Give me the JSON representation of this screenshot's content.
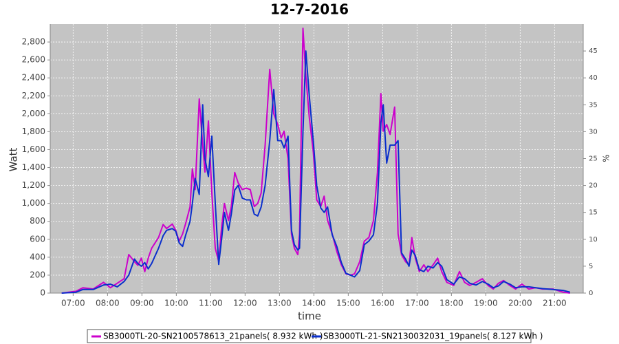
{
  "chart_data": {
    "type": "line",
    "title": "12-7-2016",
    "x_label": "time",
    "y_label": "Watt",
    "y2_label": "%",
    "grid": true,
    "legend": "bottom",
    "xlim": [
      "06:20",
      "21:50"
    ],
    "xticks": [
      "07:00",
      "08:00",
      "09:00",
      "10:00",
      "11:00",
      "12:00",
      "13:00",
      "14:00",
      "15:00",
      "16:00",
      "17:00",
      "18:00",
      "19:00",
      "20:00",
      "21:00"
    ],
    "ylim": [
      0,
      3000
    ],
    "yticks": [
      0,
      200,
      400,
      600,
      800,
      {
        "value": 1000,
        "label": "1,000"
      },
      {
        "value": 1200,
        "label": "1,200"
      },
      {
        "value": 1400,
        "label": "1,400"
      },
      {
        "value": 1600,
        "label": "1,600"
      },
      {
        "value": 1800,
        "label": "1,800"
      },
      {
        "value": 2000,
        "label": "2,000"
      },
      {
        "value": 2200,
        "label": "2,200"
      },
      {
        "value": 2400,
        "label": "2,400"
      },
      {
        "value": 2600,
        "label": "2,600"
      },
      {
        "value": 2800,
        "label": "2,800"
      }
    ],
    "y2lim": [
      0,
      50
    ],
    "y2ticks": [
      0,
      5,
      10,
      15,
      20,
      25,
      30,
      35,
      40,
      45
    ],
    "x": [
      "06:40",
      "07:05",
      "07:17",
      "07:35",
      "07:53",
      "08:05",
      "08:17",
      "08:29",
      "08:37",
      "08:47",
      "08:53",
      "08:59",
      "09:05",
      "09:11",
      "09:17",
      "09:29",
      "09:37",
      "09:43",
      "09:53",
      "09:59",
      "10:05",
      "10:11",
      "10:16",
      "10:24",
      "10:28",
      "10:33",
      "10:40",
      "10:46",
      "10:50",
      "10:56",
      "11:02",
      "11:08",
      "11:14",
      "11:19",
      "11:24",
      "11:31",
      "11:36",
      "11:42",
      "11:48",
      "11:55",
      "12:02",
      "12:09",
      "12:16",
      "12:22",
      "12:28",
      "12:35",
      "12:43",
      "12:50",
      "12:57",
      "13:03",
      "13:08",
      "13:15",
      "13:21",
      "13:26",
      "13:32",
      "13:35",
      "13:41",
      "13:46",
      "13:52",
      "13:59",
      "14:05",
      "14:12",
      "14:18",
      "14:24",
      "14:32",
      "14:40",
      "14:48",
      "14:56",
      "15:04",
      "15:11",
      "15:20",
      "15:28",
      "15:36",
      "15:44",
      "15:51",
      "15:57",
      "16:01",
      "16:07",
      "16:13",
      "16:21",
      "16:27",
      "16:33",
      "16:40",
      "16:46",
      "16:51",
      "16:57",
      "17:04",
      "17:12",
      "17:19",
      "17:28",
      "17:36",
      "17:43",
      "17:52",
      "18:04",
      "18:14",
      "18:23",
      "18:32",
      "18:43",
      "18:54",
      "19:04",
      "19:13",
      "19:22",
      "19:31",
      "19:42",
      "19:52",
      "20:03",
      "20:15",
      "20:27",
      "20:39",
      "20:57",
      "21:15",
      "21:27"
    ],
    "series": [
      {
        "name": "SB3000TL-20-SN2100578613_21panels( 8.932 kWh )",
        "color": "#cc00cc",
        "values": [
          0,
          20,
          60,
          45,
          120,
          60,
          110,
          160,
          430,
          350,
          310,
          390,
          240,
          390,
          500,
          620,
          765,
          720,
          770,
          700,
          580,
          660,
          770,
          960,
          1385,
          1155,
          2165,
          1650,
          1350,
          1920,
          1120,
          500,
          350,
          735,
          1000,
          810,
          965,
          1345,
          1230,
          1155,
          1170,
          1155,
          965,
          1000,
          1115,
          1650,
          2495,
          2000,
          1880,
          1730,
          1805,
          1500,
          660,
          500,
          430,
          660,
          2953,
          2420,
          1960,
          1575,
          1040,
          965,
          1080,
          810,
          660,
          465,
          315,
          215,
          200,
          215,
          350,
          580,
          620,
          810,
          1345,
          2225,
          1805,
          1880,
          1770,
          2075,
          660,
          430,
          350,
          315,
          620,
          390,
          240,
          315,
          240,
          315,
          390,
          240,
          120,
          85,
          240,
          120,
          85,
          120,
          160,
          85,
          45,
          110,
          140,
          85,
          45,
          100,
          45,
          60,
          45,
          45,
          10,
          0
        ]
      },
      {
        "name": "SB3000TL-21-SN2130032031_19panels( 8.127 kWh )",
        "color": "#0a2fcc",
        "values": [
          0,
          10,
          40,
          40,
          90,
          100,
          70,
          130,
          200,
          380,
          330,
          300,
          340,
          270,
          330,
          500,
          640,
          700,
          720,
          690,
          560,
          520,
          640,
          800,
          1000,
          1280,
          1100,
          2100,
          1500,
          1300,
          1750,
          1000,
          320,
          600,
          900,
          700,
          880,
          1150,
          1200,
          1060,
          1040,
          1040,
          880,
          860,
          960,
          1200,
          1700,
          2270,
          1700,
          1700,
          1620,
          1750,
          700,
          540,
          480,
          500,
          1800,
          2700,
          2200,
          1700,
          1200,
          950,
          900,
          960,
          650,
          520,
          340,
          220,
          200,
          180,
          250,
          540,
          580,
          650,
          1000,
          1900,
          2100,
          1450,
          1650,
          1650,
          1700,
          450,
          380,
          300,
          480,
          420,
          260,
          240,
          300,
          280,
          340,
          300,
          150,
          100,
          180,
          160,
          110,
          90,
          130,
          100,
          60,
          80,
          130,
          100,
          60,
          70,
          70,
          60,
          50,
          40,
          30,
          10
        ]
      }
    ]
  }
}
